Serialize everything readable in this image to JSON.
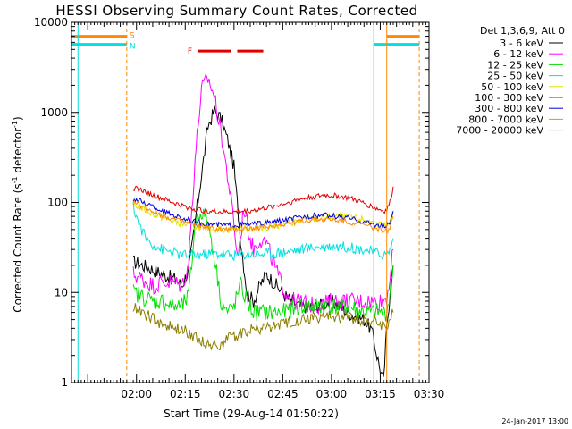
{
  "chart_data": {
    "type": "line",
    "title": "HESSI Observing Summary Count Rates, Corrected",
    "xlabel": "Start Time (29-Aug-14 01:50:22)",
    "ylabel": "Corrected Count Rate (s⁻¹ detector⁻¹)",
    "ylabel_main": "Corrected Count Rate (s",
    "ylabel_sup1": "-1",
    "ylabel_mid": " detector",
    "ylabel_sup2": "-1",
    "ylabel_end": ")",
    "yscale": "log",
    "ylim": [
      1,
      10000
    ],
    "xlim_min": [
      -10,
      100
    ],
    "x_ticks": [
      {
        "min": 10,
        "label": "02:00"
      },
      {
        "min": 25,
        "label": "02:15"
      },
      {
        "min": 40,
        "label": "02:30"
      },
      {
        "min": 55,
        "label": "02:45"
      },
      {
        "min": 70,
        "label": "03:00"
      },
      {
        "min": 85,
        "label": "03:15"
      },
      {
        "min": 100,
        "label": "03:30"
      }
    ],
    "y_ticks": [
      {
        "value": 1,
        "label": "1"
      },
      {
        "value": 10,
        "label": "10"
      },
      {
        "value": 100,
        "label": "100"
      },
      {
        "value": 1000,
        "label": "1000"
      },
      {
        "value": 10000,
        "label": "10000"
      }
    ],
    "legend": {
      "placement": "right",
      "header": "Det 1,3,6,9, Att 0",
      "entries": [
        {
          "label": "3 - 6 keV",
          "color": "#000000"
        },
        {
          "label": "6 - 12 keV",
          "color": "#ff00ff"
        },
        {
          "label": "12 - 25 keV",
          "color": "#00e000"
        },
        {
          "label": "25 - 50 keV",
          "color": "#00e0e0"
        },
        {
          "label": "50 - 100 keV",
          "color": "#e0e000"
        },
        {
          "label": "100 - 300 keV",
          "color": "#e00000"
        },
        {
          "label": "300 - 800 keV",
          "color": "#0000e0"
        },
        {
          "label": "800 - 7000 keV",
          "color": "#ff8800"
        },
        {
          "label": "7000 - 20000 keV",
          "color": "#8b7d00"
        }
      ]
    },
    "flags": {
      "S": {
        "label": "S",
        "color": "#ff8800",
        "value": 7000,
        "segments": [
          [
            -10,
            7
          ],
          [
            87,
            97
          ]
        ]
      },
      "N": {
        "label": "N",
        "color": "#00e0e0",
        "value": 5700,
        "segments": [
          [
            -10,
            7
          ],
          [
            83,
            97
          ]
        ]
      },
      "F": {
        "label": "F",
        "color": "#e00000",
        "value": 4800,
        "segments": [
          [
            29,
            39
          ],
          [
            41,
            49
          ]
        ]
      }
    },
    "night_lines": {
      "color": "#00e0e0",
      "solid": [
        -8,
        83
      ],
      "dashed": [
        7,
        97
      ]
    },
    "saa_line": {
      "color": "#ff8800",
      "x": 87
    },
    "series": [
      {
        "name": "3 - 6 keV",
        "color": "#000000",
        "x": [
          9,
          12,
          15,
          18,
          20,
          22,
          24,
          26,
          27,
          28,
          30,
          32,
          34,
          36,
          38,
          40,
          41,
          42,
          43,
          44,
          46,
          48,
          50,
          53,
          56,
          60,
          65,
          70,
          75,
          80,
          82,
          83,
          84,
          86,
          87,
          88,
          89
        ],
        "y": [
          22,
          20,
          18,
          16,
          15,
          14,
          12,
          18,
          30,
          60,
          200,
          700,
          1050,
          850,
          500,
          250,
          100,
          40,
          20,
          10,
          8,
          12,
          16,
          12,
          9,
          7,
          7,
          8,
          6,
          5,
          4,
          3,
          2,
          1,
          4,
          10,
          20
        ]
      },
      {
        "name": "6 - 12 keV",
        "color": "#ff00ff",
        "x": [
          9,
          12,
          15,
          18,
          21,
          24,
          26,
          27,
          28,
          30,
          32,
          34,
          36,
          38,
          40,
          41,
          42,
          43,
          44,
          45,
          46,
          48,
          50,
          52,
          54,
          56,
          58,
          60,
          65,
          70,
          75,
          80,
          85,
          87,
          88,
          89
        ],
        "y": [
          16,
          14,
          12,
          13,
          13,
          12,
          20,
          80,
          300,
          1800,
          2400,
          1500,
          600,
          200,
          60,
          25,
          40,
          90,
          60,
          40,
          30,
          40,
          35,
          22,
          14,
          10,
          8,
          8,
          7,
          8,
          8,
          8,
          8,
          9,
          15,
          30
        ]
      },
      {
        "name": "12 - 25 keV",
        "color": "#00e000",
        "x": [
          9,
          12,
          15,
          18,
          21,
          24,
          26,
          27,
          28,
          30,
          32,
          34,
          36,
          38,
          40,
          42,
          44,
          46,
          48,
          50,
          55,
          60,
          65,
          70,
          75,
          80,
          85,
          87,
          88,
          89
        ],
        "y": [
          10,
          9,
          8,
          8,
          7,
          7,
          9,
          20,
          60,
          80,
          60,
          25,
          8,
          6,
          7,
          12,
          8,
          6,
          6,
          6,
          6,
          7,
          7,
          7,
          7,
          6,
          6,
          6,
          10,
          20
        ]
      },
      {
        "name": "25 - 50 keV",
        "color": "#00e0e0",
        "x": [
          9,
          11,
          13,
          15,
          18,
          21,
          24,
          28,
          32,
          36,
          40,
          45,
          50,
          55,
          60,
          65,
          70,
          75,
          80,
          85,
          87,
          88,
          89
        ],
        "y": [
          90,
          55,
          40,
          34,
          30,
          28,
          26,
          26,
          27,
          27,
          26,
          27,
          27,
          28,
          30,
          32,
          33,
          32,
          30,
          27,
          26,
          30,
          40
        ]
      },
      {
        "name": "50 - 100 keV",
        "color": "#e0e000",
        "x": [
          9,
          12,
          15,
          18,
          21,
          24,
          28,
          32,
          36,
          40,
          44,
          48,
          52,
          56,
          60,
          64,
          68,
          72,
          76,
          80,
          84,
          87,
          88,
          89
        ],
        "y": [
          95,
          85,
          75,
          68,
          62,
          58,
          54,
          52,
          50,
          50,
          51,
          52,
          55,
          58,
          62,
          65,
          68,
          70,
          68,
          64,
          57,
          55,
          60,
          80
        ]
      },
      {
        "name": "100 - 300 keV",
        "color": "#e00000",
        "x": [
          9,
          12,
          15,
          18,
          21,
          24,
          28,
          32,
          36,
          40,
          44,
          48,
          52,
          56,
          60,
          64,
          68,
          72,
          76,
          80,
          84,
          86,
          87,
          88,
          89
        ],
        "y": [
          145,
          135,
          120,
          110,
          100,
          92,
          84,
          80,
          78,
          78,
          80,
          84,
          90,
          98,
          108,
          115,
          120,
          118,
          110,
          98,
          85,
          80,
          82,
          100,
          150
        ]
      },
      {
        "name": "300 - 800 keV",
        "color": "#0000e0",
        "x": [
          9,
          12,
          15,
          18,
          21,
          24,
          28,
          32,
          36,
          40,
          44,
          48,
          52,
          56,
          60,
          64,
          68,
          72,
          76,
          80,
          84,
          87,
          88,
          89
        ],
        "y": [
          110,
          100,
          90,
          80,
          73,
          67,
          61,
          58,
          56,
          56,
          57,
          58,
          61,
          64,
          68,
          71,
          72,
          70,
          66,
          61,
          56,
          54,
          60,
          80
        ]
      },
      {
        "name": "800 - 7000 keV",
        "color": "#ff8800",
        "x": [
          9,
          12,
          15,
          18,
          21,
          24,
          28,
          32,
          36,
          40,
          44,
          48,
          52,
          56,
          60,
          64,
          68,
          72,
          76,
          80,
          84,
          87,
          88,
          89
        ],
        "y": [
          100,
          90,
          80,
          72,
          66,
          61,
          56,
          52,
          50,
          50,
          51,
          52,
          55,
          58,
          61,
          64,
          65,
          63,
          60,
          56,
          51,
          48,
          52,
          70
        ]
      },
      {
        "name": "7000 - 20000 keV",
        "color": "#8b7d00",
        "x": [
          9,
          12,
          15,
          18,
          21,
          24,
          27,
          30,
          33,
          36,
          40,
          44,
          48,
          52,
          56,
          60,
          65,
          70,
          75,
          80,
          85,
          87,
          88,
          89
        ],
        "y": [
          7,
          6,
          5,
          4.5,
          4,
          3.8,
          3.5,
          2.8,
          2.6,
          2.7,
          3.3,
          3.8,
          4,
          4.2,
          4.5,
          5,
          5.2,
          5.4,
          5.3,
          5,
          4.5,
          4.2,
          5,
          6
        ]
      }
    ],
    "generated": "24-Jan-2017 13:00"
  }
}
